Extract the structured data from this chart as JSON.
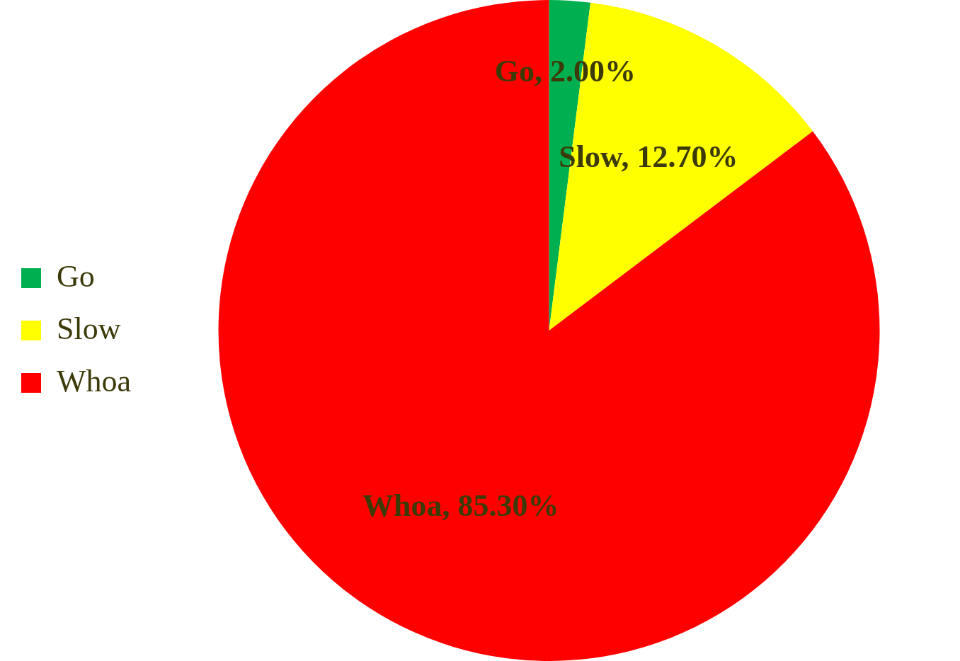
{
  "chart_data": {
    "type": "pie",
    "categories": [
      "Go",
      "Slow",
      "Whoa"
    ],
    "values": [
      2.0,
      12.7,
      85.3
    ],
    "colors": [
      "#00b050",
      "#ffff00",
      "#ff0000"
    ],
    "value_labels": [
      "Go, 2.00%",
      "Slow, 12.70%",
      "Whoa, 85.30%"
    ],
    "legend": "left"
  }
}
